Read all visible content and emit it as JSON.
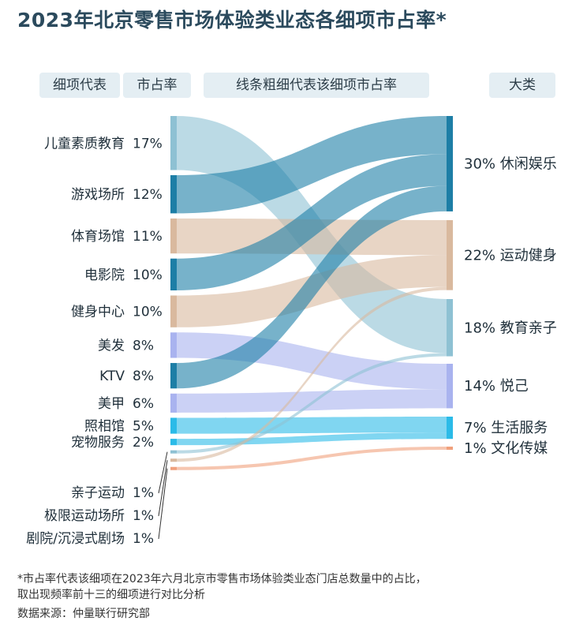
{
  "title": "2023年北京零售市场体验类业态各细项市占率*",
  "headers": {
    "item": "细项代表",
    "share": "市占率",
    "desc": "线条粗细代表该细项市占率",
    "category": "大类"
  },
  "colors": {
    "leisure": "#1d7ea6",
    "sports": "#d9b99e",
    "education": "#8ec1d3",
    "self": "#a9b3ef",
    "life": "#2bbbe8",
    "culture": "#f0a07c"
  },
  "chart_data": {
    "type": "sankey",
    "unit": "%",
    "sources": [
      {
        "name": "儿童素质教育",
        "value": 17,
        "label": "17%",
        "target": "教育亲子"
      },
      {
        "name": "游戏场所",
        "value": 12,
        "label": "12%",
        "target": "休闲娱乐"
      },
      {
        "name": "体育场馆",
        "value": 11,
        "label": "11%",
        "target": "运动健身"
      },
      {
        "name": "电影院",
        "value": 10,
        "label": "10%",
        "target": "休闲娱乐"
      },
      {
        "name": "健身中心",
        "value": 10,
        "label": "10%",
        "target": "运动健身"
      },
      {
        "name": "美发",
        "value": 8,
        "label": "8%",
        "target": "悦己"
      },
      {
        "name": "KTV",
        "value": 8,
        "label": "8%",
        "target": "休闲娱乐"
      },
      {
        "name": "美甲",
        "value": 6,
        "label": "6%",
        "target": "悦己"
      },
      {
        "name": "照相馆",
        "value": 5,
        "label": "5%",
        "target": "生活服务"
      },
      {
        "name": "宠物服务",
        "value": 2,
        "label": "2%",
        "target": "生活服务"
      },
      {
        "name": "亲子运动",
        "value": 1,
        "label": "1%",
        "target": "教育亲子"
      },
      {
        "name": "极限运动场所",
        "value": 1,
        "label": "1%",
        "target": "运动健身"
      },
      {
        "name": "剧院/沉浸式剧场",
        "value": 1,
        "label": "1%",
        "target": "文化传媒"
      }
    ],
    "categories": [
      {
        "name": "休闲娱乐",
        "value": 30,
        "label": "30%",
        "colorKey": "leisure"
      },
      {
        "name": "运动健身",
        "value": 22,
        "label": "22%",
        "colorKey": "sports"
      },
      {
        "name": "教育亲子",
        "value": 18,
        "label": "18%",
        "colorKey": "education"
      },
      {
        "name": "悦己",
        "value": 14,
        "label": "14%",
        "colorKey": "self"
      },
      {
        "name": "生活服务",
        "value": 7,
        "label": "7%",
        "colorKey": "life"
      },
      {
        "name": "文化传媒",
        "value": 1,
        "label": "1%",
        "colorKey": "culture"
      }
    ]
  },
  "footnote": {
    "line1": "*市占率代表该细项在2023年六月北京市零售市场体验类业态门店总数量中的占比，",
    "line2": "取出现频率前十三的细项进行对比分析",
    "line3": "数据来源：仲量联行研究部"
  }
}
